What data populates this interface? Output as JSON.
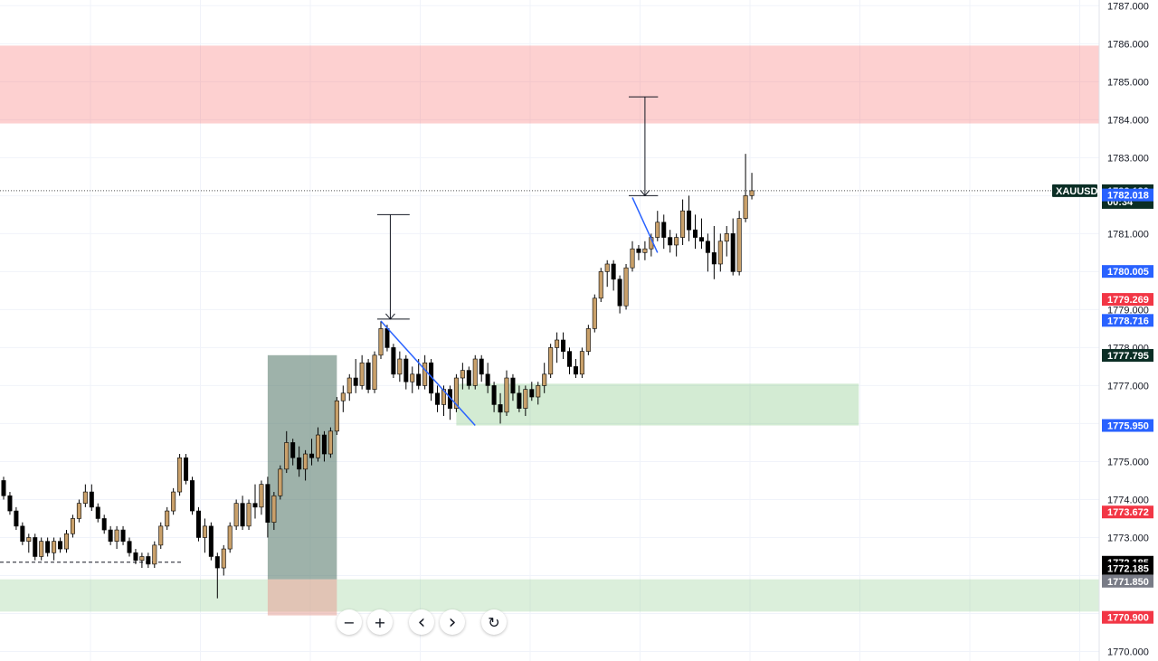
{
  "chart_data": {
    "type": "candlestick",
    "symbol": "XAUUSD",
    "ylim": [
      1769.75,
      1787.15
    ],
    "y_ticks": [
      1770,
      1771,
      1772,
      1773,
      1774,
      1775,
      1776,
      1777,
      1778,
      1779,
      1780,
      1781,
      1782,
      1783,
      1784,
      1785,
      1786,
      1787
    ],
    "y_tick_labels": [
      "1770.000",
      "",
      "",
      "1773.000",
      "1774.000",
      "1775.000",
      "",
      "1777.000",
      "1778.000",
      "1779.000",
      "",
      "1781.000",
      "",
      "1783.000",
      "1784.000",
      "1785.000",
      "1786.000",
      "1787.000"
    ],
    "grid": true,
    "current_price": 1782.13,
    "current_price_label": "1782.130",
    "countdown": "00:34",
    "up_color": "#c9a06a",
    "down_color": "#000000",
    "price_tags": [
      {
        "label": "1782.018",
        "value": 1782.018,
        "color": "#2962ff"
      },
      {
        "label": "1780.005",
        "value": 1780.005,
        "color": "#2962ff"
      },
      {
        "label": "1779.269",
        "value": 1779.269,
        "color": "#f23645"
      },
      {
        "label": "1778.716",
        "value": 1778.716,
        "color": "#2962ff"
      },
      {
        "label": "1777.795",
        "value": 1777.795,
        "color": "#0b2e25"
      },
      {
        "label": "1775.950",
        "value": 1775.95,
        "color": "#2962ff"
      },
      {
        "label": "1773.672",
        "value": 1773.672,
        "color": "#f23645"
      },
      {
        "label": "1772.185",
        "value": 1772.35,
        "color": "#000000"
      },
      {
        "label": "1772.185",
        "value": 1772.185,
        "color": "#000000"
      },
      {
        "label": "1771.850",
        "value": 1771.85,
        "color": "#787b86"
      },
      {
        "label": "1770.900",
        "value": 1770.9,
        "color": "#f23645"
      }
    ],
    "zones": [
      {
        "name": "supply-zone",
        "bar_from": 0,
        "bar_to": 190,
        "high": 1785.95,
        "low": 1783.9,
        "color": "rgba(247,85,85,0.28)"
      },
      {
        "name": "demand-zone-upper",
        "bar_from": 72,
        "bar_to": 136,
        "high": 1777.05,
        "low": 1775.95,
        "color": "rgba(110,190,110,0.30)"
      },
      {
        "name": "demand-zone-lower",
        "bar_from": 0,
        "bar_to": 190,
        "high": 1771.9,
        "low": 1771.05,
        "color": "rgba(110,190,110,0.25)"
      }
    ],
    "position": {
      "bar_from": 42,
      "bar_to": 53,
      "top": 1777.8,
      "entry": 1771.9,
      "bottom": 1770.95,
      "profit_color": "#5d7f72",
      "loss_color": "rgba(230,160,150,0.55)"
    },
    "trendlines": [
      {
        "from": [
          60,
          1778.7
        ],
        "to": [
          75,
          1775.95
        ],
        "color": "#2962ff"
      },
      {
        "from": [
          100,
          1781.95
        ],
        "to": [
          104,
          1780.5
        ],
        "color": "#2962ff"
      }
    ],
    "arrows": [
      {
        "x": 61.5,
        "from": 1781.5,
        "to": 1778.75,
        "head_from": 60,
        "head_to": 64
      },
      {
        "x": 102,
        "from": 1784.6,
        "to": 1782.0,
        "head_from": 100,
        "head_to": 103.5
      }
    ],
    "dashed_lines": [
      {
        "from": 0,
        "to": 27,
        "value": 1772.35
      }
    ],
    "candles": [
      [
        1774.5,
        1774.6,
        1774.0,
        1774.1
      ],
      [
        1774.1,
        1774.2,
        1773.6,
        1773.7
      ],
      [
        1773.7,
        1773.8,
        1773.2,
        1773.3
      ],
      [
        1773.3,
        1773.4,
        1772.8,
        1772.9
      ],
      [
        1772.9,
        1773.1,
        1772.6,
        1773.0
      ],
      [
        1773.0,
        1773.1,
        1772.4,
        1772.5
      ],
      [
        1772.5,
        1773.0,
        1772.4,
        1772.9
      ],
      [
        1772.9,
        1773.0,
        1772.5,
        1772.6
      ],
      [
        1772.6,
        1773.0,
        1772.4,
        1772.9
      ],
      [
        1772.9,
        1773.0,
        1772.6,
        1772.7
      ],
      [
        1772.7,
        1773.2,
        1772.6,
        1773.1
      ],
      [
        1773.1,
        1773.6,
        1773.0,
        1773.5
      ],
      [
        1773.5,
        1774.0,
        1773.4,
        1773.9
      ],
      [
        1773.9,
        1774.4,
        1773.8,
        1774.2
      ],
      [
        1774.2,
        1774.4,
        1773.7,
        1773.8
      ],
      [
        1773.8,
        1773.9,
        1773.4,
        1773.5
      ],
      [
        1773.5,
        1773.6,
        1773.1,
        1773.2
      ],
      [
        1773.2,
        1773.3,
        1772.8,
        1772.9
      ],
      [
        1772.9,
        1773.3,
        1772.7,
        1773.2
      ],
      [
        1773.2,
        1773.3,
        1772.8,
        1772.9
      ],
      [
        1772.9,
        1773.0,
        1772.5,
        1772.6
      ],
      [
        1772.6,
        1772.7,
        1772.3,
        1772.4
      ],
      [
        1772.4,
        1772.6,
        1772.2,
        1772.5
      ],
      [
        1772.5,
        1772.6,
        1772.2,
        1772.3
      ],
      [
        1772.3,
        1772.9,
        1772.2,
        1772.8
      ],
      [
        1772.8,
        1773.4,
        1772.7,
        1773.3
      ],
      [
        1773.3,
        1773.8,
        1773.2,
        1773.7
      ],
      [
        1773.7,
        1774.3,
        1773.6,
        1774.2
      ],
      [
        1774.2,
        1775.2,
        1774.1,
        1775.1
      ],
      [
        1775.1,
        1775.2,
        1774.4,
        1774.5
      ],
      [
        1774.5,
        1774.6,
        1773.6,
        1773.7
      ],
      [
        1773.7,
        1773.8,
        1772.9,
        1773.0
      ],
      [
        1773.0,
        1773.5,
        1772.6,
        1773.3
      ],
      [
        1773.3,
        1773.4,
        1772.4,
        1772.5
      ],
      [
        1772.5,
        1772.6,
        1771.4,
        1772.2
      ],
      [
        1772.2,
        1772.8,
        1772.0,
        1772.7
      ],
      [
        1772.7,
        1773.4,
        1772.6,
        1773.3
      ],
      [
        1773.3,
        1774.0,
        1773.2,
        1773.9
      ],
      [
        1773.9,
        1774.1,
        1773.2,
        1773.3
      ],
      [
        1773.3,
        1774.0,
        1773.2,
        1773.9
      ],
      [
        1773.9,
        1774.4,
        1773.5,
        1773.8
      ],
      [
        1773.8,
        1774.5,
        1773.6,
        1774.4
      ],
      [
        1774.4,
        1774.6,
        1773.0,
        1773.4
      ],
      [
        1773.4,
        1774.2,
        1773.2,
        1774.1
      ],
      [
        1774.1,
        1774.9,
        1774.0,
        1774.8
      ],
      [
        1774.8,
        1775.8,
        1774.7,
        1775.5
      ],
      [
        1775.5,
        1775.6,
        1774.9,
        1775.1
      ],
      [
        1775.1,
        1775.4,
        1774.6,
        1774.8
      ],
      [
        1774.8,
        1775.3,
        1774.5,
        1775.2
      ],
      [
        1775.2,
        1775.6,
        1774.9,
        1775.1
      ],
      [
        1775.1,
        1775.9,
        1775.0,
        1775.7
      ],
      [
        1775.7,
        1775.8,
        1775.0,
        1775.2
      ],
      [
        1775.2,
        1775.9,
        1775.1,
        1775.8
      ],
      [
        1775.8,
        1776.7,
        1775.7,
        1776.6
      ],
      [
        1776.6,
        1777.0,
        1776.3,
        1776.8
      ],
      [
        1776.8,
        1777.3,
        1776.6,
        1777.2
      ],
      [
        1777.2,
        1777.7,
        1776.8,
        1777.0
      ],
      [
        1777.0,
        1777.8,
        1776.9,
        1777.6
      ],
      [
        1777.6,
        1777.7,
        1776.8,
        1776.9
      ],
      [
        1776.9,
        1777.9,
        1776.8,
        1777.8
      ],
      [
        1777.8,
        1778.7,
        1777.7,
        1778.5
      ],
      [
        1778.5,
        1778.6,
        1777.9,
        1778.0
      ],
      [
        1778.0,
        1778.1,
        1777.2,
        1777.3
      ],
      [
        1777.3,
        1777.9,
        1777.1,
        1777.7
      ],
      [
        1777.7,
        1777.8,
        1776.9,
        1777.1
      ],
      [
        1777.1,
        1777.5,
        1776.8,
        1777.3
      ],
      [
        1777.3,
        1777.7,
        1776.9,
        1777.0
      ],
      [
        1777.0,
        1777.8,
        1776.9,
        1777.6
      ],
      [
        1777.6,
        1777.7,
        1776.6,
        1776.8
      ],
      [
        1776.8,
        1777.0,
        1776.3,
        1776.5
      ],
      [
        1776.5,
        1777.0,
        1776.2,
        1776.9
      ],
      [
        1776.9,
        1777.0,
        1776.1,
        1776.4
      ],
      [
        1776.4,
        1777.3,
        1776.3,
        1777.2
      ],
      [
        1777.2,
        1777.6,
        1776.9,
        1777.4
      ],
      [
        1777.4,
        1777.5,
        1776.9,
        1777.0
      ],
      [
        1777.0,
        1777.8,
        1776.9,
        1777.7
      ],
      [
        1777.7,
        1777.8,
        1777.1,
        1777.3
      ],
      [
        1777.3,
        1777.6,
        1776.8,
        1777.0
      ],
      [
        1777.0,
        1777.1,
        1776.3,
        1776.5
      ],
      [
        1776.5,
        1776.8,
        1776.0,
        1776.3
      ],
      [
        1776.3,
        1777.4,
        1776.2,
        1777.2
      ],
      [
        1777.2,
        1777.3,
        1776.6,
        1776.8
      ],
      [
        1776.8,
        1777.0,
        1776.3,
        1776.4
      ],
      [
        1776.4,
        1777.0,
        1776.2,
        1776.9
      ],
      [
        1776.9,
        1777.1,
        1776.6,
        1776.7
      ],
      [
        1776.7,
        1777.1,
        1776.5,
        1777.0
      ],
      [
        1777.0,
        1777.6,
        1776.8,
        1777.3
      ],
      [
        1777.3,
        1778.1,
        1777.2,
        1778.0
      ],
      [
        1778.0,
        1778.4,
        1777.6,
        1778.2
      ],
      [
        1778.2,
        1778.4,
        1777.7,
        1777.9
      ],
      [
        1777.9,
        1778.0,
        1777.3,
        1777.5
      ],
      [
        1777.5,
        1777.7,
        1777.2,
        1777.3
      ],
      [
        1777.3,
        1778.0,
        1777.2,
        1777.9
      ],
      [
        1777.9,
        1778.6,
        1777.8,
        1778.5
      ],
      [
        1778.5,
        1779.4,
        1778.4,
        1779.3
      ],
      [
        1779.3,
        1780.1,
        1779.2,
        1780.0
      ],
      [
        1780.0,
        1780.3,
        1779.6,
        1780.2
      ],
      [
        1780.2,
        1780.3,
        1779.5,
        1779.8
      ],
      [
        1779.8,
        1779.9,
        1778.9,
        1779.1
      ],
      [
        1779.1,
        1780.2,
        1779.0,
        1780.1
      ],
      [
        1780.1,
        1780.8,
        1780.0,
        1780.6
      ],
      [
        1780.6,
        1780.7,
        1780.3,
        1780.5
      ],
      [
        1780.5,
        1780.8,
        1780.3,
        1780.6
      ],
      [
        1780.6,
        1781.0,
        1780.4,
        1780.9
      ],
      [
        1780.9,
        1781.6,
        1780.8,
        1781.3
      ],
      [
        1781.3,
        1781.5,
        1780.6,
        1780.9
      ],
      [
        1780.9,
        1781.1,
        1780.5,
        1780.7
      ],
      [
        1780.7,
        1781.0,
        1780.4,
        1780.9
      ],
      [
        1780.9,
        1781.9,
        1780.7,
        1781.6
      ],
      [
        1781.6,
        1782.0,
        1780.8,
        1781.1
      ],
      [
        1781.1,
        1781.5,
        1780.6,
        1780.9
      ],
      [
        1780.9,
        1781.4,
        1780.6,
        1780.8
      ],
      [
        1780.8,
        1781.0,
        1780.0,
        1780.5
      ],
      [
        1780.5,
        1781.2,
        1779.8,
        1780.2
      ],
      [
        1780.2,
        1781.0,
        1780.0,
        1780.8
      ],
      [
        1780.8,
        1781.2,
        1780.4,
        1781.0
      ],
      [
        1781.0,
        1781.4,
        1779.9,
        1780.0
      ],
      [
        1780.0,
        1781.6,
        1779.9,
        1781.4
      ],
      [
        1781.4,
        1783.1,
        1781.3,
        1782.0
      ],
      [
        1782.0,
        1782.6,
        1781.9,
        1782.13
      ]
    ]
  },
  "toolbar": {
    "zoom_out": "−",
    "zoom_in": "+",
    "scroll_left": "‹",
    "scroll_right": "›",
    "reset": "↻"
  }
}
